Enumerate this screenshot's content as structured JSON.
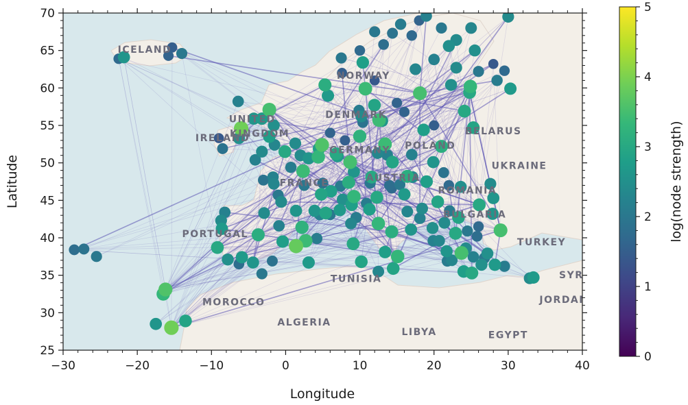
{
  "chart_data": {
    "type": "scatter",
    "title": "",
    "xlabel": "Longitude",
    "ylabel": "Latitude",
    "xlim": [
      -30,
      40
    ],
    "ylim": [
      25,
      70
    ],
    "x_ticks": [
      "−30",
      "−20",
      "−10",
      "0",
      "10",
      "20",
      "30",
      "40"
    ],
    "x_tick_values": [
      -30,
      -20,
      -10,
      0,
      10,
      20,
      30,
      40
    ],
    "y_ticks": [
      "25",
      "30",
      "35",
      "40",
      "45",
      "50",
      "55",
      "60",
      "65",
      "70"
    ],
    "y_tick_values": [
      25,
      30,
      35,
      40,
      45,
      50,
      55,
      60,
      65,
      70
    ],
    "grid": false,
    "basemap": true,
    "edge_color": "#5d55b4",
    "colorbar": {
      "label": "log(node strength)",
      "range": [
        0,
        5
      ],
      "ticks": [
        "0",
        "1",
        "2",
        "3",
        "4",
        "5"
      ],
      "tick_values": [
        0,
        1,
        2,
        3,
        4,
        5
      ],
      "colormap": "viridis",
      "stops": [
        "#440154",
        "#482878",
        "#3e4989",
        "#31688e",
        "#26828e",
        "#1f9e89",
        "#35b779",
        "#6ece58",
        "#b5de2b",
        "#fde725"
      ]
    },
    "map_labels": [
      {
        "text": "ICELAND",
        "lon": -19,
        "lat": 64.7
      },
      {
        "text": "UNITED",
        "lon": -4.5,
        "lat": 55.4
      },
      {
        "text": "KINGDOM",
        "lon": -3.5,
        "lat": 53.5
      },
      {
        "text": "IRELAND",
        "lon": -8.5,
        "lat": 52.9
      },
      {
        "text": "NORWAY",
        "lon": 10.5,
        "lat": 61.2
      },
      {
        "text": "DENMARK",
        "lon": 9.5,
        "lat": 56.0
      },
      {
        "text": "POLAND",
        "lon": 19.5,
        "lat": 51.9
      },
      {
        "text": "BELARUS",
        "lon": 28,
        "lat": 53.8
      },
      {
        "text": "UKRAINE",
        "lon": 31.5,
        "lat": 49.2
      },
      {
        "text": "GERMANY",
        "lon": 10,
        "lat": 51.3
      },
      {
        "text": "FRANCE",
        "lon": 2.5,
        "lat": 46.9
      },
      {
        "text": "AUSTRIA",
        "lon": 14.5,
        "lat": 47.6
      },
      {
        "text": "ROMANIA",
        "lon": 24.5,
        "lat": 45.9
      },
      {
        "text": "BULGARIA",
        "lon": 25.5,
        "lat": 42.7
      },
      {
        "text": "PORTUGAL",
        "lon": -9.5,
        "lat": 40.1
      },
      {
        "text": "TURKEY",
        "lon": 34.5,
        "lat": 39.0
      },
      {
        "text": "TUNISIA",
        "lon": 9.5,
        "lat": 34.1
      },
      {
        "text": "MOROCCO",
        "lon": -7,
        "lat": 31.0
      },
      {
        "text": "ALGERIA",
        "lon": 2.5,
        "lat": 28.3
      },
      {
        "text": "LIBYA",
        "lon": 18,
        "lat": 27.0
      },
      {
        "text": "EGYPT",
        "lon": 30,
        "lat": 26.6
      },
      {
        "text": "JORDAN",
        "lon": 37.5,
        "lat": 31.3
      },
      {
        "text": "SYR",
        "lon": 38.5,
        "lat": 34.6
      }
    ],
    "nodes": [
      {
        "lon": -28.5,
        "lat": 38.4,
        "v": 1.8
      },
      {
        "lon": -27.2,
        "lat": 38.5,
        "v": 1.9
      },
      {
        "lon": -25.5,
        "lat": 37.5,
        "v": 2.0
      },
      {
        "lon": -22.5,
        "lat": 63.9,
        "v": 1.7
      },
      {
        "lon": -21.8,
        "lat": 64.1,
        "v": 2.6
      },
      {
        "lon": -15.3,
        "lat": 65.4,
        "v": 1.5
      },
      {
        "lon": -14.0,
        "lat": 64.6,
        "v": 2.0
      },
      {
        "lon": -15.8,
        "lat": 64.3,
        "v": 1.6
      },
      {
        "lon": -16.5,
        "lat": 32.5,
        "v": 3.3
      },
      {
        "lon": -16.2,
        "lat": 33.1,
        "v": 3.6
      },
      {
        "lon": -17.5,
        "lat": 28.5,
        "v": 2.6
      },
      {
        "lon": -15.4,
        "lat": 28.0,
        "v": 3.9
      },
      {
        "lon": -13.5,
        "lat": 28.9,
        "v": 2.9
      },
      {
        "lon": -9.2,
        "lat": 38.7,
        "v": 3.0
      },
      {
        "lon": -8.6,
        "lat": 41.2,
        "v": 2.7
      },
      {
        "lon": -8.7,
        "lat": 42.3,
        "v": 2.4
      },
      {
        "lon": -8.2,
        "lat": 43.4,
        "v": 2.2
      },
      {
        "lon": -7.8,
        "lat": 37.1,
        "v": 2.5
      },
      {
        "lon": -5.9,
        "lat": 37.4,
        "v": 2.7
      },
      {
        "lon": -6.3,
        "lat": 36.5,
        "v": 1.8
      },
      {
        "lon": -4.4,
        "lat": 36.7,
        "v": 2.6
      },
      {
        "lon": -3.7,
        "lat": 40.4,
        "v": 3.1
      },
      {
        "lon": -2.9,
        "lat": 43.3,
        "v": 2.4
      },
      {
        "lon": -0.9,
        "lat": 41.6,
        "v": 2.2
      },
      {
        "lon": -0.4,
        "lat": 39.5,
        "v": 2.8
      },
      {
        "lon": 2.2,
        "lat": 41.4,
        "v": 3.2
      },
      {
        "lon": 2.7,
        "lat": 39.6,
        "v": 3.4
      },
      {
        "lon": 1.4,
        "lat": 38.9,
        "v": 3.8
      },
      {
        "lon": 4.2,
        "lat": 39.9,
        "v": 2.1
      },
      {
        "lon": -1.8,
        "lat": 36.9,
        "v": 1.9
      },
      {
        "lon": -3.2,
        "lat": 35.2,
        "v": 2.0
      },
      {
        "lon": -6.3,
        "lat": 53.3,
        "v": 2.5
      },
      {
        "lon": -8.5,
        "lat": 51.9,
        "v": 1.9
      },
      {
        "lon": -9.0,
        "lat": 53.3,
        "v": 1.4
      },
      {
        "lon": -6.0,
        "lat": 54.6,
        "v": 3.9
      },
      {
        "lon": -4.3,
        "lat": 55.9,
        "v": 2.6
      },
      {
        "lon": -3.2,
        "lat": 55.9,
        "v": 2.7
      },
      {
        "lon": -2.2,
        "lat": 57.1,
        "v": 3.5
      },
      {
        "lon": -6.4,
        "lat": 58.2,
        "v": 2.2
      },
      {
        "lon": -1.6,
        "lat": 55.0,
        "v": 2.5
      },
      {
        "lon": -2.2,
        "lat": 53.5,
        "v": 2.8
      },
      {
        "lon": -1.5,
        "lat": 52.4,
        "v": 2.3
      },
      {
        "lon": -0.1,
        "lat": 51.5,
        "v": 3.0
      },
      {
        "lon": -3.2,
        "lat": 51.5,
        "v": 2.4
      },
      {
        "lon": -4.1,
        "lat": 50.4,
        "v": 2.2
      },
      {
        "lon": 1.3,
        "lat": 52.6,
        "v": 2.4
      },
      {
        "lon": 2.35,
        "lat": 48.9,
        "v": 3.4
      },
      {
        "lon": 4.8,
        "lat": 45.8,
        "v": 2.9
      },
      {
        "lon": 5.4,
        "lat": 43.3,
        "v": 2.9
      },
      {
        "lon": 7.3,
        "lat": 43.7,
        "v": 2.7
      },
      {
        "lon": 1.4,
        "lat": 43.6,
        "v": 2.6
      },
      {
        "lon": -0.6,
        "lat": 44.8,
        "v": 2.4
      },
      {
        "lon": -1.6,
        "lat": 47.2,
        "v": 2.3
      },
      {
        "lon": -1.7,
        "lat": 48.1,
        "v": 2.2
      },
      {
        "lon": 3.1,
        "lat": 50.6,
        "v": 2.6
      },
      {
        "lon": 4.4,
        "lat": 50.8,
        "v": 3.3
      },
      {
        "lon": 4.9,
        "lat": 52.4,
        "v": 3.6
      },
      {
        "lon": 4.5,
        "lat": 51.9,
        "v": 2.8
      },
      {
        "lon": 6.8,
        "lat": 51.2,
        "v": 3.0
      },
      {
        "lon": 7.0,
        "lat": 50.9,
        "v": 2.7
      },
      {
        "lon": 8.7,
        "lat": 50.1,
        "v": 3.5
      },
      {
        "lon": 9.99,
        "lat": 53.55,
        "v": 3.2
      },
      {
        "lon": 13.4,
        "lat": 52.5,
        "v": 3.4
      },
      {
        "lon": 11.6,
        "lat": 48.1,
        "v": 3.0
      },
      {
        "lon": 9.2,
        "lat": 48.8,
        "v": 2.6
      },
      {
        "lon": 8.5,
        "lat": 47.4,
        "v": 3.1
      },
      {
        "lon": 6.1,
        "lat": 46.2,
        "v": 2.8
      },
      {
        "lon": 7.4,
        "lat": 46.9,
        "v": 2.1
      },
      {
        "lon": 12.4,
        "lat": 51.3,
        "v": 2.3
      },
      {
        "lon": 13.7,
        "lat": 51.05,
        "v": 2.2
      },
      {
        "lon": 16.4,
        "lat": 48.2,
        "v": 3.1
      },
      {
        "lon": 14.4,
        "lat": 50.1,
        "v": 2.9
      },
      {
        "lon": 19.0,
        "lat": 47.5,
        "v": 2.8
      },
      {
        "lon": 21.0,
        "lat": 52.2,
        "v": 3.1
      },
      {
        "lon": 19.9,
        "lat": 50.1,
        "v": 2.6
      },
      {
        "lon": 17.0,
        "lat": 51.1,
        "v": 2.2
      },
      {
        "lon": 18.6,
        "lat": 54.4,
        "v": 2.8
      },
      {
        "lon": 12.6,
        "lat": 55.7,
        "v": 3.4
      },
      {
        "lon": 10.2,
        "lat": 56.2,
        "v": 2.4
      },
      {
        "lon": 9.9,
        "lat": 57.0,
        "v": 2.1
      },
      {
        "lon": 10.4,
        "lat": 55.4,
        "v": 1.9
      },
      {
        "lon": 11.97,
        "lat": 57.7,
        "v": 2.9
      },
      {
        "lon": 13.0,
        "lat": 55.6,
        "v": 2.6
      },
      {
        "lon": 18.1,
        "lat": 59.3,
        "v": 3.5
      },
      {
        "lon": 10.75,
        "lat": 59.9,
        "v": 3.4
      },
      {
        "lon": 5.3,
        "lat": 60.4,
        "v": 3.1
      },
      {
        "lon": 5.7,
        "lat": 58.97,
        "v": 2.7
      },
      {
        "lon": 10.4,
        "lat": 63.4,
        "v": 2.8
      },
      {
        "lon": 14.4,
        "lat": 67.3,
        "v": 1.9
      },
      {
        "lon": 18.96,
        "lat": 69.6,
        "v": 2.2
      },
      {
        "lon": 24.9,
        "lat": 60.2,
        "v": 3.3
      },
      {
        "lon": 22.3,
        "lat": 60.4,
        "v": 2.5
      },
      {
        "lon": 25.5,
        "lat": 65.0,
        "v": 2.5
      },
      {
        "lon": 24.8,
        "lat": 59.4,
        "v": 3.0
      },
      {
        "lon": 24.1,
        "lat": 56.9,
        "v": 3.0
      },
      {
        "lon": 25.3,
        "lat": 54.7,
        "v": 2.9
      },
      {
        "lon": 30.3,
        "lat": 59.9,
        "v": 2.7
      },
      {
        "lon": 29.5,
        "lat": 62.3,
        "v": 1.7
      },
      {
        "lon": 28.0,
        "lat": 63.2,
        "v": 1.4
      },
      {
        "lon": 30.0,
        "lat": 69.5,
        "v": 2.4
      },
      {
        "lon": 26.1,
        "lat": 44.4,
        "v": 3.0
      },
      {
        "lon": 23.6,
        "lat": 46.8,
        "v": 2.5
      },
      {
        "lon": 27.6,
        "lat": 47.2,
        "v": 2.4
      },
      {
        "lon": 28.0,
        "lat": 45.3,
        "v": 2.6
      },
      {
        "lon": 23.3,
        "lat": 42.7,
        "v": 2.9
      },
      {
        "lon": 27.9,
        "lat": 43.2,
        "v": 2.6
      },
      {
        "lon": 20.5,
        "lat": 44.8,
        "v": 2.9
      },
      {
        "lon": 16.0,
        "lat": 45.8,
        "v": 2.7
      },
      {
        "lon": 18.4,
        "lat": 43.9,
        "v": 2.4
      },
      {
        "lon": 19.8,
        "lat": 41.3,
        "v": 2.5
      },
      {
        "lon": 21.4,
        "lat": 42.0,
        "v": 2.4
      },
      {
        "lon": 22.9,
        "lat": 40.6,
        "v": 3.0
      },
      {
        "lon": 23.7,
        "lat": 37.98,
        "v": 3.5
      },
      {
        "lon": 21.7,
        "lat": 38.2,
        "v": 2.6
      },
      {
        "lon": 25.1,
        "lat": 35.3,
        "v": 3.0
      },
      {
        "lon": 24.0,
        "lat": 35.5,
        "v": 2.8
      },
      {
        "lon": 26.4,
        "lat": 36.4,
        "v": 2.5
      },
      {
        "lon": 28.2,
        "lat": 36.4,
        "v": 2.7
      },
      {
        "lon": 27.2,
        "lat": 37.9,
        "v": 2.5
      },
      {
        "lon": 28.97,
        "lat": 41.0,
        "v": 3.5
      },
      {
        "lon": 25.3,
        "lat": 37.45,
        "v": 2.2
      },
      {
        "lon": 20.7,
        "lat": 39.6,
        "v": 2.3
      },
      {
        "lon": 33.4,
        "lat": 34.7,
        "v": 2.7
      },
      {
        "lon": 32.9,
        "lat": 34.6,
        "v": 2.4
      },
      {
        "lon": 12.5,
        "lat": 41.9,
        "v": 3.3
      },
      {
        "lon": 9.2,
        "lat": 45.5,
        "v": 3.3
      },
      {
        "lon": 12.3,
        "lat": 45.4,
        "v": 3.0
      },
      {
        "lon": 11.3,
        "lat": 43.8,
        "v": 2.8
      },
      {
        "lon": 14.3,
        "lat": 40.8,
        "v": 3.1
      },
      {
        "lon": 16.9,
        "lat": 41.1,
        "v": 2.6
      },
      {
        "lon": 13.4,
        "lat": 38.1,
        "v": 2.8
      },
      {
        "lon": 15.1,
        "lat": 37.5,
        "v": 3.3
      },
      {
        "lon": 9.1,
        "lat": 39.2,
        "v": 3.0
      },
      {
        "lon": 8.9,
        "lat": 44.4,
        "v": 2.8
      },
      {
        "lon": 14.5,
        "lat": 35.9,
        "v": 2.9
      },
      {
        "lon": 10.2,
        "lat": 36.8,
        "v": 2.9
      },
      {
        "lon": 3.1,
        "lat": 36.7,
        "v": 2.7
      },
      {
        "lon": 7.7,
        "lat": 45.1,
        "v": 2.5
      },
      {
        "lon": 8.8,
        "lat": 41.9,
        "v": 2.3
      },
      {
        "lon": 9.5,
        "lat": 42.7,
        "v": 2.1
      },
      {
        "lon": 4.6,
        "lat": 43.1,
        "v": 2.2
      },
      {
        "lon": 6.0,
        "lat": 43.1,
        "v": 2.0
      },
      {
        "lon": 12.5,
        "lat": 35.5,
        "v": 2.3
      },
      {
        "lon": 22.1,
        "lat": 43.6,
        "v": 2.1
      },
      {
        "lon": 16.4,
        "lat": 43.5,
        "v": 2.3
      },
      {
        "lon": 18.1,
        "lat": 42.6,
        "v": 2.2
      },
      {
        "lon": 6.0,
        "lat": 54.0,
        "v": 1.6
      },
      {
        "lon": 8.0,
        "lat": 53.0,
        "v": 1.5
      },
      {
        "lon": 16.0,
        "lat": 56.8,
        "v": 1.6
      },
      {
        "lon": 20.0,
        "lat": 55.0,
        "v": 1.5
      },
      {
        "lon": 7.6,
        "lat": 62.0,
        "v": 1.5
      },
      {
        "lon": 12.0,
        "lat": 61.0,
        "v": 1.4
      },
      {
        "lon": 15.0,
        "lat": 58.0,
        "v": 1.6
      },
      {
        "lon": 17.5,
        "lat": 62.5,
        "v": 2.3
      },
      {
        "lon": 20.0,
        "lat": 63.8,
        "v": 2.2
      },
      {
        "lon": 22.0,
        "lat": 65.6,
        "v": 2.5
      },
      {
        "lon": 17.0,
        "lat": 67.0,
        "v": 1.7
      },
      {
        "lon": 21.0,
        "lat": 68.0,
        "v": 2.0
      },
      {
        "lon": 23.0,
        "lat": 66.4,
        "v": 2.4
      },
      {
        "lon": 26.0,
        "lat": 62.2,
        "v": 2.0
      },
      {
        "lon": 28.5,
        "lat": 61.0,
        "v": 2.1
      },
      {
        "lon": 23.0,
        "lat": 62.7,
        "v": 2.4
      },
      {
        "lon": 7.5,
        "lat": 64.0,
        "v": 2.0
      },
      {
        "lon": 13.2,
        "lat": 65.8,
        "v": 1.8
      },
      {
        "lon": 15.5,
        "lat": 68.5,
        "v": 2.1
      },
      {
        "lon": 10.0,
        "lat": 65.0,
        "v": 1.7
      },
      {
        "lon": 12.0,
        "lat": 67.5,
        "v": 2.0
      },
      {
        "lon": 25.0,
        "lat": 68.0,
        "v": 2.3
      },
      {
        "lon": 18.0,
        "lat": 69.0,
        "v": 1.6
      },
      {
        "lon": 2.0,
        "lat": 51.0,
        "v": 2.4
      },
      {
        "lon": 0.7,
        "lat": 49.4,
        "v": 2.1
      },
      {
        "lon": -3.0,
        "lat": 47.7,
        "v": 1.9
      },
      {
        "lon": 2.5,
        "lat": 47.0,
        "v": 2.0
      },
      {
        "lon": 5.0,
        "lat": 47.3,
        "v": 1.9
      },
      {
        "lon": -1.0,
        "lat": 45.7,
        "v": 2.0
      },
      {
        "lon": 3.9,
        "lat": 43.6,
        "v": 2.6
      },
      {
        "lon": 10.9,
        "lat": 44.6,
        "v": 2.1
      },
      {
        "lon": 14.0,
        "lat": 47.0,
        "v": 1.8
      },
      {
        "lon": 11.4,
        "lat": 47.3,
        "v": 2.0
      },
      {
        "lon": 14.3,
        "lat": 46.6,
        "v": 1.7
      },
      {
        "lon": 15.4,
        "lat": 47.1,
        "v": 2.0
      },
      {
        "lon": 17.1,
        "lat": 48.1,
        "v": 2.4
      },
      {
        "lon": 21.3,
        "lat": 48.7,
        "v": 1.9
      },
      {
        "lon": 22.0,
        "lat": 47.0,
        "v": 1.7
      },
      {
        "lon": 26.0,
        "lat": 41.5,
        "v": 1.7
      },
      {
        "lon": 24.5,
        "lat": 40.9,
        "v": 2.0
      },
      {
        "lon": 25.8,
        "lat": 40.2,
        "v": 1.8
      },
      {
        "lon": 22.4,
        "lat": 37.0,
        "v": 2.3
      },
      {
        "lon": 21.8,
        "lat": 36.9,
        "v": 2.1
      },
      {
        "lon": 26.8,
        "lat": 37.3,
        "v": 2.0
      },
      {
        "lon": 29.5,
        "lat": 36.2,
        "v": 2.1
      },
      {
        "lon": 24.3,
        "lat": 38.6,
        "v": 2.4
      },
      {
        "lon": 19.9,
        "lat": 39.6,
        "v": 2.2
      }
    ]
  }
}
